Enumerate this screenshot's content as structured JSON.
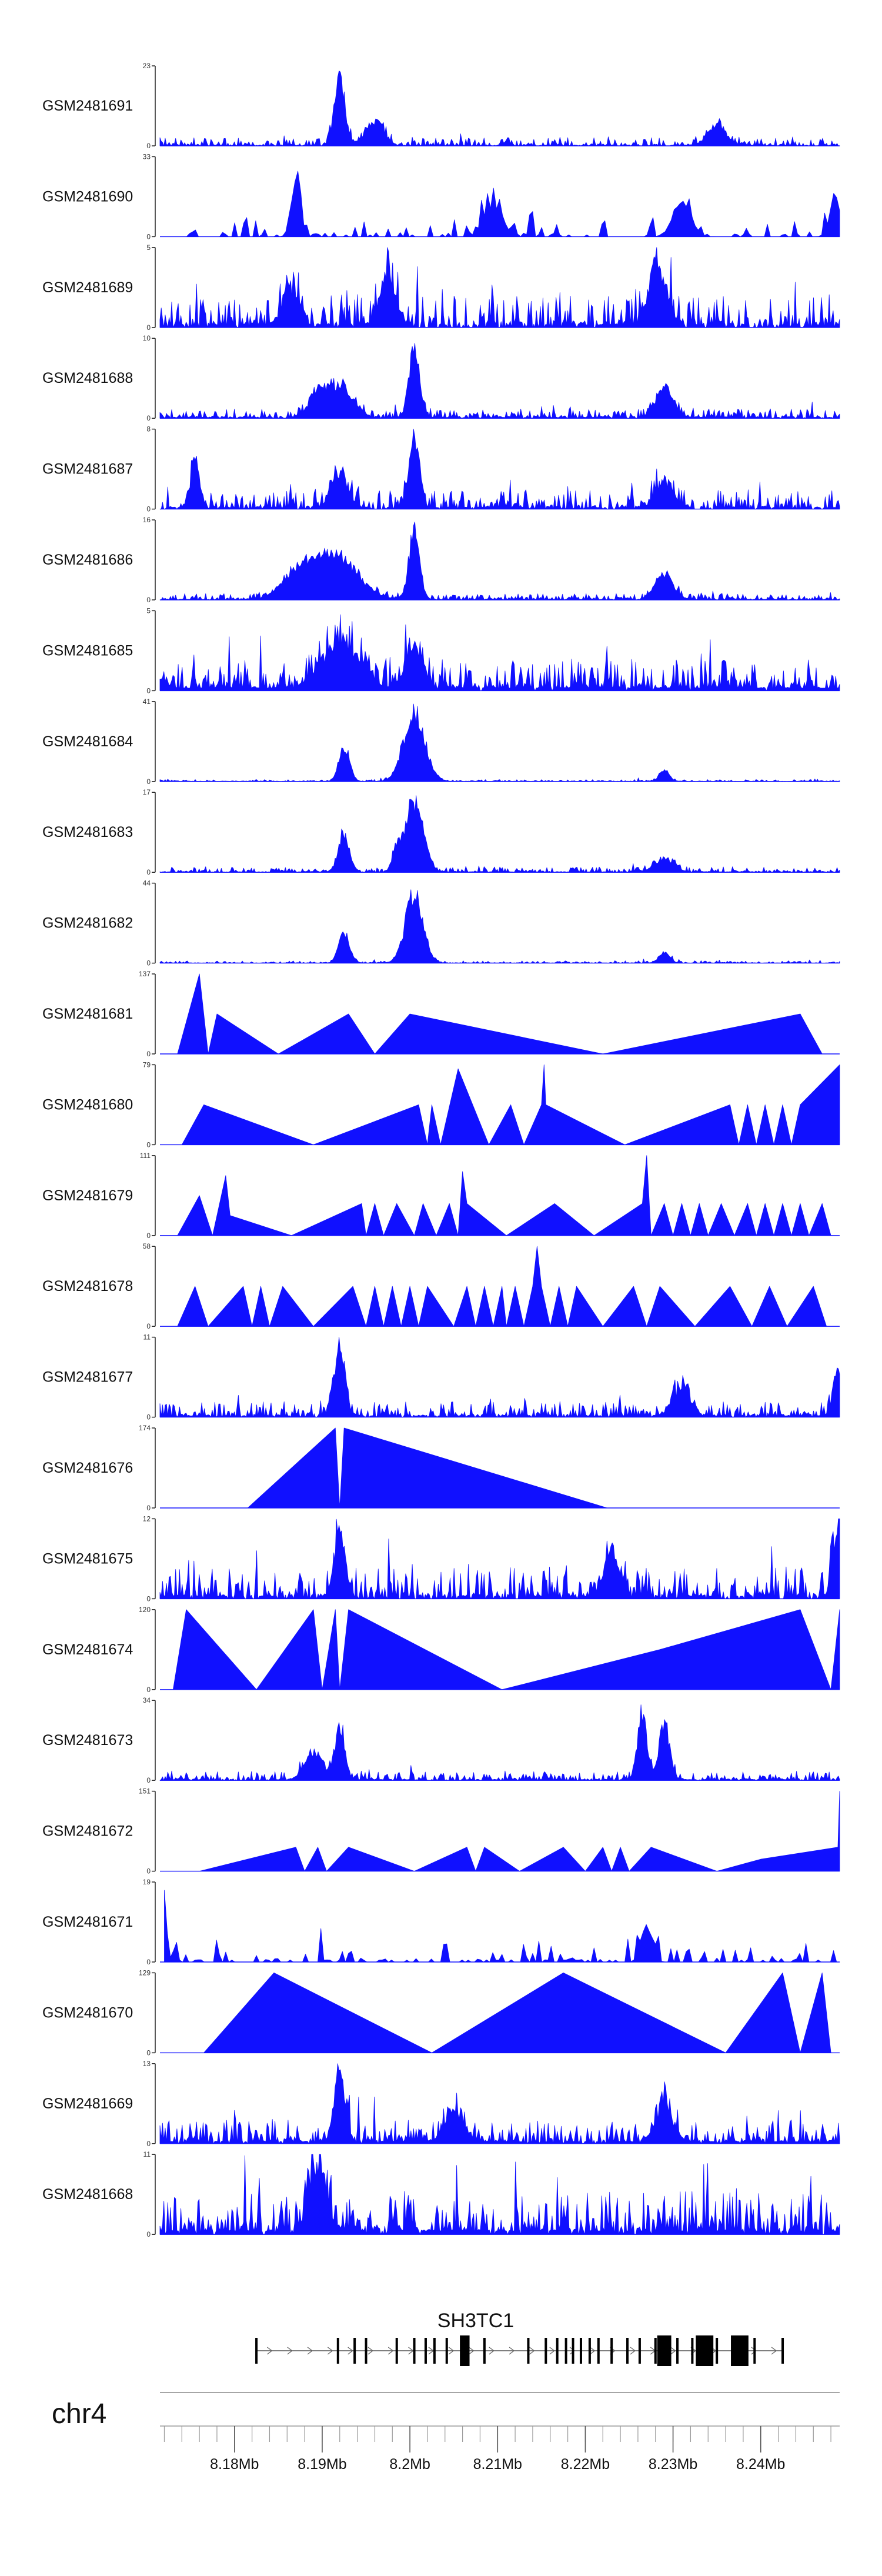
{
  "chart_data": {
    "type": "area",
    "title": "",
    "chromosome": "chr4",
    "xlim_mb": [
      8.1715,
      8.249
    ],
    "x_ticks": [
      "8.18Mb",
      "8.19Mb",
      "8.2Mb",
      "8.21Mb",
      "8.22Mb",
      "8.23Mb",
      "8.24Mb"
    ],
    "x_tick_values_mb": [
      8.18,
      8.19,
      8.2,
      8.21,
      8.22,
      8.23,
      8.24
    ],
    "gene": {
      "name": "SH3TC1",
      "start_mb": 8.1825,
      "end_mb": 8.2425,
      "strand": "+",
      "exons_mb": [
        8.1825,
        8.1918,
        8.1937,
        8.195,
        8.1985,
        8.2005,
        8.2018,
        8.2028,
        8.2042,
        8.2085,
        8.2135,
        8.2155,
        8.2168,
        8.2178,
        8.2186,
        8.2195,
        8.2205,
        8.2215,
        8.223,
        8.2248,
        8.2262,
        8.228,
        8.2305,
        8.2322,
        8.235,
        8.2372,
        8.2393,
        8.2425
      ],
      "wide_exons_mb": [
        [
          8.2057,
          8.2068
        ],
        [
          8.2282,
          8.2298
        ],
        [
          8.2326,
          8.2346
        ],
        [
          8.2366,
          8.2386
        ]
      ]
    },
    "series": [
      {
        "name": "GSM2481691",
        "ymax": 23,
        "style": "noise",
        "density": 0.8,
        "base": 0.11,
        "peaks": [
          [
            8.192,
            1.0,
            0.0006
          ],
          [
            8.196,
            0.35,
            0.001
          ],
          [
            8.235,
            0.3,
            0.001
          ]
        ]
      },
      {
        "name": "GSM2481690",
        "ymax": 33,
        "style": "sparse",
        "density": 0.34,
        "base": 0.28,
        "start": 8.1735,
        "peaks": [
          [
            8.187,
            1.0,
            0.0005
          ],
          [
            8.2095,
            0.5,
            0.001
          ],
          [
            8.231,
            0.5,
            0.001
          ],
          [
            8.2485,
            0.6,
            0.0006
          ]
        ]
      },
      {
        "name": "GSM2481689",
        "ymax": 5,
        "style": "noise",
        "density": 0.8,
        "base": 0.42,
        "peaks": [
          [
            8.2282,
            0.9,
            0.001
          ],
          [
            8.1975,
            0.6,
            0.001
          ],
          [
            8.1865,
            0.5,
            0.001
          ]
        ]
      },
      {
        "name": "GSM2481688",
        "ymax": 10,
        "style": "noise",
        "density": 0.9,
        "base": 0.12,
        "peaks": [
          [
            8.2005,
            1.0,
            0.0006
          ],
          [
            8.192,
            0.45,
            0.0015
          ],
          [
            8.229,
            0.4,
            0.001
          ],
          [
            8.1895,
            0.3,
            0.001
          ]
        ]
      },
      {
        "name": "GSM2481687",
        "ymax": 8,
        "style": "noise",
        "density": 0.8,
        "base": 0.25,
        "peaks": [
          [
            8.2005,
            1.0,
            0.0006
          ],
          [
            8.1755,
            0.7,
            0.0005
          ],
          [
            8.229,
            0.4,
            0.001
          ],
          [
            8.192,
            0.5,
            0.001
          ]
        ]
      },
      {
        "name": "GSM2481686",
        "ymax": 16,
        "style": "noise",
        "density": 0.9,
        "base": 0.08,
        "peaks": [
          [
            8.2005,
            1.0,
            0.0006
          ],
          [
            8.1915,
            0.6,
            0.0025
          ],
          [
            8.1875,
            0.35,
            0.002
          ],
          [
            8.229,
            0.35,
            0.001
          ]
        ]
      },
      {
        "name": "GSM2481685",
        "ymax": 5,
        "style": "noise",
        "density": 0.95,
        "base": 0.4,
        "peaks": [
          [
            8.192,
            0.7,
            0.002
          ],
          [
            8.2005,
            0.6,
            0.001
          ]
        ]
      },
      {
        "name": "GSM2481684",
        "ymax": 41,
        "style": "noise",
        "density": 0.9,
        "base": 0.025,
        "peaks": [
          [
            8.2005,
            1.0,
            0.0012
          ],
          [
            8.1925,
            0.5,
            0.0006
          ],
          [
            8.229,
            0.15,
            0.0006
          ]
        ]
      },
      {
        "name": "GSM2481683",
        "ymax": 17,
        "style": "noise",
        "density": 0.9,
        "base": 0.07,
        "peaks": [
          [
            8.2005,
            1.0,
            0.001
          ],
          [
            8.1925,
            0.55,
            0.0006
          ],
          [
            8.1985,
            0.3,
            0.0005
          ],
          [
            8.229,
            0.2,
            0.001
          ]
        ]
      },
      {
        "name": "GSM2481682",
        "ymax": 44,
        "style": "noise",
        "density": 0.9,
        "base": 0.03,
        "peaks": [
          [
            8.2005,
            1.0,
            0.001
          ],
          [
            8.1925,
            0.45,
            0.0006
          ],
          [
            8.229,
            0.15,
            0.0006
          ]
        ]
      },
      {
        "name": "GSM2481681",
        "ymax": 137,
        "style": "polyline",
        "pts": [
          [
            8.1735,
            0
          ],
          [
            8.176,
            1.0
          ],
          [
            8.177,
            0
          ],
          [
            8.178,
            0.5
          ],
          [
            8.185,
            0
          ],
          [
            8.193,
            0.5
          ],
          [
            8.196,
            0
          ],
          [
            8.2,
            0.5
          ],
          [
            8.222,
            0
          ],
          [
            8.2445,
            0.5
          ],
          [
            8.247,
            0
          ]
        ]
      },
      {
        "name": "GSM2481680",
        "ymax": 79,
        "style": "polyline",
        "pts": [
          [
            8.174,
            0
          ],
          [
            8.1765,
            0.5
          ],
          [
            8.189,
            0
          ],
          [
            8.201,
            0.5
          ],
          [
            8.202,
            0
          ],
          [
            8.2025,
            0.5
          ],
          [
            8.2035,
            0
          ],
          [
            8.2055,
            0.95
          ],
          [
            8.209,
            0
          ],
          [
            8.2115,
            0.5
          ],
          [
            8.213,
            0
          ],
          [
            8.215,
            0.5
          ],
          [
            8.2153,
            1.0
          ],
          [
            8.2155,
            0.5
          ],
          [
            8.2245,
            0
          ],
          [
            8.2365,
            0.5
          ],
          [
            8.2375,
            0
          ],
          [
            8.2385,
            0.5
          ],
          [
            8.2395,
            0
          ],
          [
            8.2405,
            0.5
          ],
          [
            8.2415,
            0
          ],
          [
            8.2425,
            0.5
          ],
          [
            8.2435,
            0
          ],
          [
            8.2445,
            0.5
          ],
          [
            8.249,
            1.0
          ],
          [
            8.249,
            0
          ]
        ]
      },
      {
        "name": "GSM2481679",
        "ymax": 111,
        "style": "polyline",
        "pts": [
          [
            8.1735,
            0
          ],
          [
            8.176,
            0.5
          ],
          [
            8.1775,
            0
          ],
          [
            8.179,
            0.75
          ],
          [
            8.1795,
            0.25
          ],
          [
            8.1865,
            0
          ],
          [
            8.1945,
            0.4
          ],
          [
            8.195,
            0
          ],
          [
            8.196,
            0.4
          ],
          [
            8.197,
            0
          ],
          [
            8.1985,
            0.4
          ],
          [
            8.2005,
            0
          ],
          [
            8.2015,
            0.4
          ],
          [
            8.203,
            0
          ],
          [
            8.2045,
            0.4
          ],
          [
            8.2055,
            0
          ],
          [
            8.206,
            0.8
          ],
          [
            8.2065,
            0.4
          ],
          [
            8.211,
            0
          ],
          [
            8.2165,
            0.4
          ],
          [
            8.221,
            0
          ],
          [
            8.2265,
            0.4
          ],
          [
            8.227,
            1.0
          ],
          [
            8.2275,
            0
          ],
          [
            8.229,
            0.4
          ],
          [
            8.23,
            0
          ],
          [
            8.231,
            0.4
          ],
          [
            8.232,
            0
          ],
          [
            8.233,
            0.4
          ],
          [
            8.234,
            0
          ],
          [
            8.2355,
            0.4
          ],
          [
            8.237,
            0
          ],
          [
            8.2385,
            0.4
          ],
          [
            8.2395,
            0
          ],
          [
            8.2405,
            0.4
          ],
          [
            8.2415,
            0
          ],
          [
            8.2425,
            0.4
          ],
          [
            8.2435,
            0
          ],
          [
            8.2445,
            0.4
          ],
          [
            8.2455,
            0
          ],
          [
            8.247,
            0.4
          ],
          [
            8.248,
            0
          ]
        ]
      },
      {
        "name": "GSM2481678",
        "ymax": 58,
        "style": "polyline",
        "pts": [
          [
            8.1735,
            0
          ],
          [
            8.1755,
            0.5
          ],
          [
            8.177,
            0
          ],
          [
            8.181,
            0.5
          ],
          [
            8.182,
            0
          ],
          [
            8.183,
            0.5
          ],
          [
            8.184,
            0
          ],
          [
            8.1855,
            0.5
          ],
          [
            8.189,
            0
          ],
          [
            8.1935,
            0.5
          ],
          [
            8.195,
            0
          ],
          [
            8.196,
            0.5
          ],
          [
            8.197,
            0
          ],
          [
            8.198,
            0.5
          ],
          [
            8.199,
            0
          ],
          [
            8.2,
            0.5
          ],
          [
            8.201,
            0
          ],
          [
            8.202,
            0.5
          ],
          [
            8.205,
            0
          ],
          [
            8.2065,
            0.5
          ],
          [
            8.2075,
            0
          ],
          [
            8.2085,
            0.5
          ],
          [
            8.2095,
            0
          ],
          [
            8.2105,
            0.5
          ],
          [
            8.211,
            0
          ],
          [
            8.212,
            0.5
          ],
          [
            8.213,
            0
          ],
          [
            8.214,
            0.5
          ],
          [
            8.2145,
            1.0
          ],
          [
            8.215,
            0.5
          ],
          [
            8.216,
            0
          ],
          [
            8.217,
            0.5
          ],
          [
            8.218,
            0
          ],
          [
            8.219,
            0.5
          ],
          [
            8.222,
            0
          ],
          [
            8.2255,
            0.5
          ],
          [
            8.227,
            0
          ],
          [
            8.2285,
            0.5
          ],
          [
            8.2325,
            0
          ],
          [
            8.2365,
            0.5
          ],
          [
            8.239,
            0
          ],
          [
            8.241,
            0.5
          ],
          [
            8.243,
            0
          ],
          [
            8.246,
            0.5
          ],
          [
            8.2475,
            0
          ]
        ]
      },
      {
        "name": "GSM2481677",
        "ymax": 11,
        "style": "noise",
        "density": 0.9,
        "base": 0.2,
        "peaks": [
          [
            8.192,
            1.0,
            0.0006
          ],
          [
            8.2487,
            0.6,
            0.0005
          ],
          [
            8.231,
            0.4,
            0.001
          ]
        ]
      },
      {
        "name": "GSM2481676",
        "ymax": 174,
        "style": "polyline",
        "pts": [
          [
            8.1815,
            0
          ],
          [
            8.1915,
            1.0
          ],
          [
            8.192,
            0
          ],
          [
            8.1925,
            1.0
          ],
          [
            8.2225,
            0
          ]
        ]
      },
      {
        "name": "GSM2481675",
        "ymax": 12,
        "style": "noise",
        "density": 0.85,
        "base": 0.4,
        "peaks": [
          [
            8.192,
            0.95,
            0.0006
          ],
          [
            8.2487,
            0.8,
            0.0006
          ],
          [
            8.223,
            0.7,
            0.0008
          ]
        ]
      },
      {
        "name": "GSM2481674",
        "ymax": 120,
        "style": "polyline",
        "pts": [
          [
            8.173,
            0
          ],
          [
            8.1745,
            1.0
          ],
          [
            8.1825,
            0
          ],
          [
            8.189,
            1.0
          ],
          [
            8.19,
            0
          ],
          [
            8.1915,
            1.0
          ],
          [
            8.192,
            0
          ],
          [
            8.193,
            1.0
          ],
          [
            8.2105,
            0
          ],
          [
            8.2285,
            0.5
          ],
          [
            8.2445,
            1.0
          ],
          [
            8.248,
            0
          ],
          [
            8.249,
            1.0
          ],
          [
            8.249,
            0
          ]
        ]
      },
      {
        "name": "GSM2481673",
        "ymax": 34,
        "style": "noise",
        "density": 0.85,
        "base": 0.12,
        "peaks": [
          [
            8.2265,
            1.0,
            0.0005
          ],
          [
            8.229,
            0.8,
            0.0006
          ],
          [
            8.192,
            0.7,
            0.0006
          ],
          [
            8.189,
            0.4,
            0.001
          ]
        ]
      },
      {
        "name": "GSM2481672",
        "ymax": 151,
        "style": "polyline",
        "pts": [
          [
            8.176,
            0
          ],
          [
            8.187,
            0.3
          ],
          [
            8.188,
            0
          ],
          [
            8.1895,
            0.3
          ],
          [
            8.1905,
            0
          ],
          [
            8.193,
            0.3
          ],
          [
            8.2005,
            0
          ],
          [
            8.2065,
            0.3
          ],
          [
            8.2075,
            0
          ],
          [
            8.2085,
            0.3
          ],
          [
            8.2125,
            0
          ],
          [
            8.2175,
            0.3
          ],
          [
            8.22,
            0
          ],
          [
            8.222,
            0.3
          ],
          [
            8.223,
            0
          ],
          [
            8.224,
            0.3
          ],
          [
            8.225,
            0
          ],
          [
            8.2275,
            0.3
          ],
          [
            8.235,
            0
          ],
          [
            8.24,
            0.15
          ],
          [
            8.2488,
            0.3
          ],
          [
            8.249,
            1.0
          ],
          [
            8.249,
            0
          ]
        ]
      },
      {
        "name": "GSM2481671",
        "ymax": 19,
        "style": "sparse",
        "density": 0.45,
        "base": 0.3,
        "start": 8.172,
        "peaks": [
          [
            8.172,
            1.0,
            0.0003
          ],
          [
            8.227,
            0.6,
            0.0006
          ]
        ]
      },
      {
        "name": "GSM2481670",
        "ymax": 129,
        "style": "polyline",
        "pts": [
          [
            8.1765,
            0
          ],
          [
            8.1845,
            1.0
          ],
          [
            8.2025,
            0
          ],
          [
            8.2175,
            1.0
          ],
          [
            8.236,
            0
          ],
          [
            8.2425,
            1.0
          ],
          [
            8.2445,
            0
          ],
          [
            8.247,
            1.0
          ],
          [
            8.248,
            0
          ]
        ]
      },
      {
        "name": "GSM2481669",
        "ymax": 13,
        "style": "noise",
        "density": 0.9,
        "base": 0.3,
        "peaks": [
          [
            8.192,
            1.0,
            0.0006
          ],
          [
            8.205,
            0.5,
            0.001
          ],
          [
            8.229,
            0.5,
            0.001
          ]
        ]
      },
      {
        "name": "GSM2481668",
        "ymax": 11,
        "style": "noise",
        "density": 0.9,
        "base": 0.55,
        "peaks": [
          [
            8.1895,
            0.9,
            0.001
          ]
        ]
      }
    ]
  }
}
